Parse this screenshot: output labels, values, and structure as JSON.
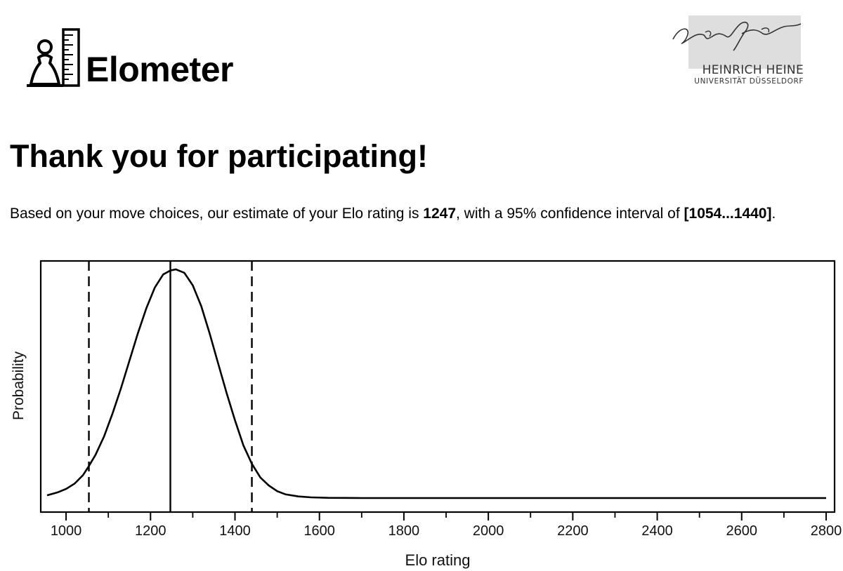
{
  "header": {
    "app_name": "Elometer",
    "university": {
      "signature_text": "Heinrich Heine",
      "name_line1": "HEINRICH HEINE",
      "name_line2": "UNIVERSITÄT DÜSSELDORF"
    }
  },
  "main": {
    "title": "Thank you for participating!",
    "result": {
      "prefix": "Based on your move choices, our estimate of your Elo rating is ",
      "estimate": "1247",
      "middle": ", with a 95% confidence interval of ",
      "interval": "[1054...1440]",
      "suffix": "."
    }
  },
  "chart_data": {
    "type": "line",
    "title": "",
    "xlabel": "Elo rating",
    "ylabel": "Probability",
    "xlim": [
      940,
      2820
    ],
    "ylim": [
      0,
      1
    ],
    "xticks": [
      1000,
      1200,
      1400,
      1600,
      1800,
      2000,
      2200,
      2400,
      2600,
      2800
    ],
    "xminor_ticks": [
      1100,
      1300,
      1500,
      1700,
      1900,
      2100,
      2300,
      2500,
      2700
    ],
    "grid": false,
    "series": [
      {
        "x": [
          955,
          980,
          1000,
          1020,
          1040,
          1054,
          1070,
          1090,
          1110,
          1130,
          1150,
          1170,
          1190,
          1210,
          1230,
          1247,
          1260,
          1280,
          1300,
          1320,
          1340,
          1360,
          1380,
          1400,
          1420,
          1440,
          1460,
          1480,
          1500,
          1520,
          1550,
          1580,
          1620,
          1700,
          1900,
          2200,
          2500,
          2800
        ],
        "y": [
          0.012,
          0.025,
          0.04,
          0.063,
          0.1,
          0.14,
          0.19,
          0.27,
          0.37,
          0.48,
          0.6,
          0.72,
          0.83,
          0.92,
          0.978,
          0.995,
          1.0,
          0.985,
          0.93,
          0.84,
          0.72,
          0.59,
          0.46,
          0.34,
          0.23,
          0.15,
          0.09,
          0.055,
          0.03,
          0.016,
          0.007,
          0.003,
          0.001,
          0.0,
          0.0,
          0.0,
          0.0,
          0.0
        ],
        "color": "#000000"
      }
    ],
    "annotations": [
      {
        "type": "vline",
        "x": 1054,
        "style": "dashed"
      },
      {
        "type": "vline",
        "x": 1247,
        "style": "solid"
      },
      {
        "type": "vline",
        "x": 1440,
        "style": "dashed"
      }
    ]
  }
}
